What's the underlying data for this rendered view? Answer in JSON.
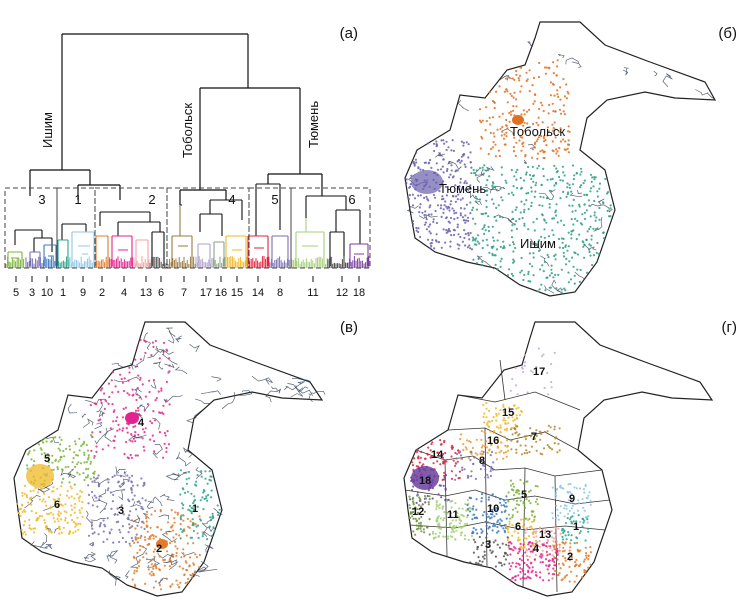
{
  "panels": {
    "a": "(a)",
    "b": "(б)",
    "v": "(в)",
    "g": "(г)"
  },
  "dendrogram": {
    "branch_labels": [
      "Ишим",
      "Тобольск",
      "Тюмень"
    ],
    "cluster_labels": [
      "3",
      "1",
      "2",
      "4",
      "5",
      "6"
    ],
    "leaf_labels": [
      "5",
      "3",
      "10",
      "1",
      "9",
      "2",
      "4",
      "13",
      "6",
      "7",
      "17",
      "16",
      "15",
      "14",
      "8",
      "11",
      "12",
      "18"
    ]
  },
  "map_b": {
    "labels": [
      "Тобольск",
      "Тюмень",
      "Ишим"
    ]
  },
  "map_v": {
    "labels": [
      "1",
      "2",
      "3",
      "4",
      "5",
      "6"
    ]
  },
  "map_g": {
    "labels": [
      "1",
      "2",
      "3",
      "4",
      "5",
      "6",
      "7",
      "8",
      "9",
      "10",
      "11",
      "12",
      "13",
      "14",
      "15",
      "16",
      "17",
      "18"
    ]
  },
  "colors": {
    "c1": "#2aa58a",
    "c2": "#e37b2b",
    "c3": "#7a6fb3",
    "c4": "#e3238f",
    "c5": "#7bb43a",
    "c6": "#efb826",
    "tyumen": "#6a5fae",
    "tobolsk": "#e06f1f",
    "ishim": "#2e9e80",
    "river": "#2f3e55",
    "border": "#222222"
  }
}
